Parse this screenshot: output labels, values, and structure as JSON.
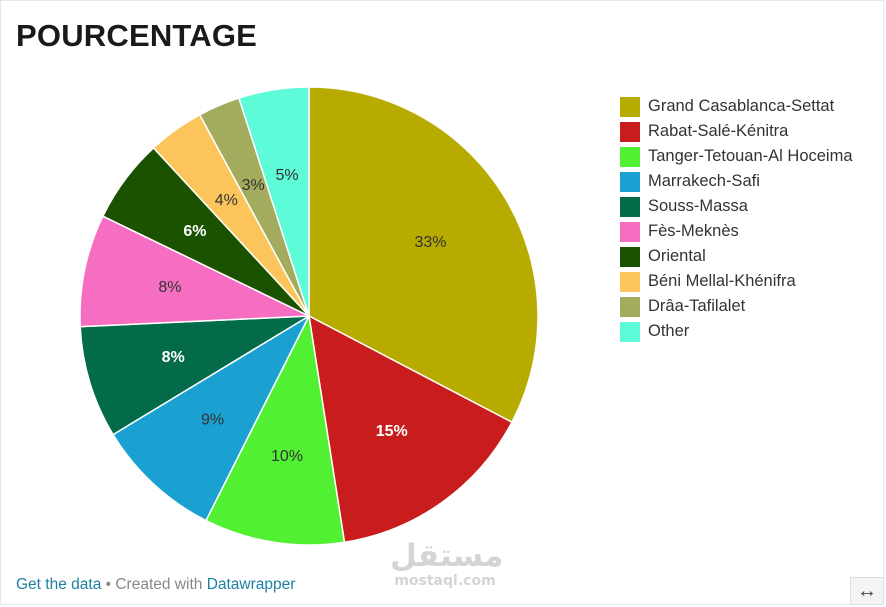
{
  "chart_data": {
    "type": "pie",
    "title": "POURCENTAGE",
    "categories": [
      "Grand Casablanca-Settat",
      "Rabat-Salé-Kénitra",
      "Tanger-Tetouan-Al Hoceima",
      "Marrakech-Safi",
      "Souss-Massa",
      "Fès-Meknès",
      "Oriental",
      "Béni Mellal-Khénifra",
      "Drâa-Tafilalet",
      "Other"
    ],
    "values": [
      33,
      15,
      10,
      9,
      8,
      8,
      6,
      4,
      3,
      5
    ],
    "value_labels": [
      "33%",
      "15%",
      "10%",
      "9%",
      "8%",
      "8%",
      "6%",
      "4%",
      "3%",
      "5%"
    ],
    "colors": [
      "#b8ab00",
      "#c91c1c",
      "#52f032",
      "#1ba1d1",
      "#036b4a",
      "#f56ec2",
      "#1a5200",
      "#fbc55b",
      "#a2ab5e",
      "#5efbd9"
    ],
    "label_colors": [
      "#333333",
      "#ffffff",
      "#333333",
      "#333333",
      "#ffffff",
      "#333333",
      "#ffffff",
      "#333333",
      "#333333",
      "#333333"
    ],
    "legend_position": "right",
    "start_angle_deg": 0,
    "direction": "clockwise"
  },
  "footer": {
    "get_data_label": "Get the data",
    "separator": " • ",
    "created_with_label": "Created with ",
    "datawrapper_label": "Datawrapper"
  },
  "watermark": {
    "arabic_text": "مستقل",
    "latin_text": "mostaql.com"
  },
  "controls": {
    "expand_icon": "↔"
  }
}
